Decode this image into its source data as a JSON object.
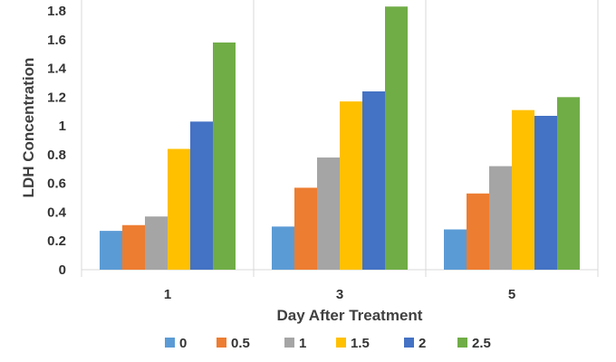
{
  "chart_data": {
    "type": "bar",
    "title": "",
    "xlabel": "Day After Treatment",
    "ylabel": "LDH Concentration",
    "categories": [
      "1",
      "3",
      "5"
    ],
    "ylim": [
      0,
      1.8
    ],
    "yticks": [
      "0",
      "0.2",
      "0.4",
      "0.6",
      "0.8",
      "1",
      "1.2",
      "1.4",
      "1.6",
      "1.8"
    ],
    "grid": false,
    "legend_position": "bottom",
    "series": [
      {
        "name": "0",
        "color": "#5b9bd5",
        "values": [
          0.27,
          0.3,
          0.28
        ]
      },
      {
        "name": "0.5",
        "color": "#ed7d31",
        "values": [
          0.31,
          0.57,
          0.53
        ]
      },
      {
        "name": "1",
        "color": "#a5a5a5",
        "values": [
          0.37,
          0.78,
          0.72
        ]
      },
      {
        "name": "1.5",
        "color": "#ffc000",
        "values": [
          0.84,
          1.17,
          1.11
        ]
      },
      {
        "name": "2",
        "color": "#4472c4",
        "values": [
          1.03,
          1.24,
          1.07
        ]
      },
      {
        "name": "2.5",
        "color": "#70ad47",
        "values": [
          1.58,
          1.83,
          1.2
        ]
      }
    ]
  }
}
